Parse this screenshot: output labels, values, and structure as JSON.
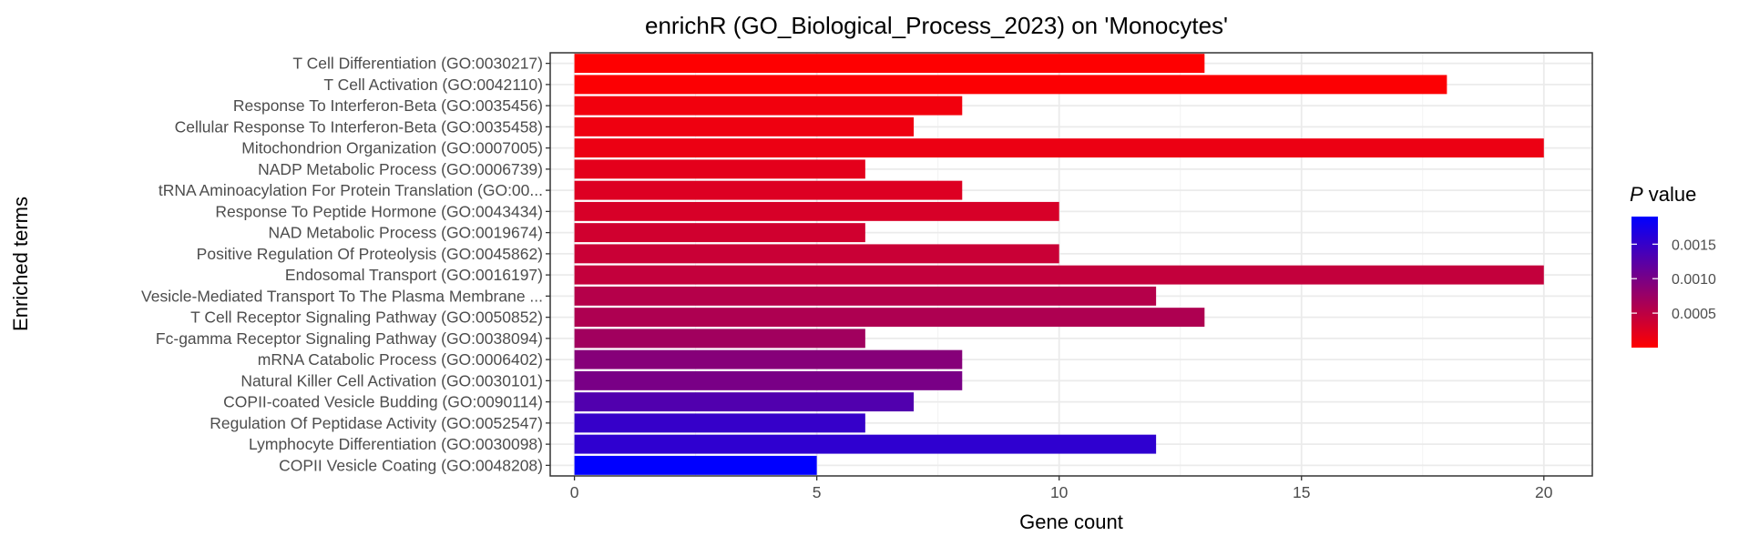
{
  "chart_data": {
    "type": "bar",
    "orientation": "horizontal",
    "title": "enrichR (GO_Biological_Process_2023) on 'Monocytes'",
    "xlabel": "Gene count",
    "ylabel": "Enriched terms",
    "xlim": [
      -0.5,
      21
    ],
    "xticks": [
      0,
      5,
      10,
      15,
      20
    ],
    "grid": true,
    "legend": {
      "title_italic": "P",
      "title_rest": " value",
      "position": "right",
      "range": [
        0.0,
        0.0019
      ],
      "ticks": [
        {
          "label": "0.0015",
          "value": 0.0015
        },
        {
          "label": "0.0010",
          "value": 0.001
        },
        {
          "label": "0.0005",
          "value": 0.0005
        }
      ],
      "low_color": "#ff0000",
      "high_color": "#0000ff"
    },
    "categories": [
      "T Cell Differentiation (GO:0030217)",
      "T Cell Activation (GO:0042110)",
      "Response To Interferon-Beta (GO:0035456)",
      "Cellular Response To Interferon-Beta (GO:0035458)",
      "Mitochondrion Organization (GO:0007005)",
      "NADP Metabolic Process (GO:0006739)",
      "tRNA Aminoacylation For Protein Translation (GO:00...",
      "Response To Peptide Hormone (GO:0043434)",
      "NAD Metabolic Process (GO:0019674)",
      "Positive Regulation Of Proteolysis (GO:0045862)",
      "Endosomal Transport (GO:0016197)",
      "Vesicle-Mediated Transport To The Plasma Membrane ...",
      "T Cell Receptor Signaling Pathway (GO:0050852)",
      "Fc-gamma Receptor Signaling Pathway (GO:0038094)",
      "mRNA Catabolic Process (GO:0006402)",
      "Natural Killer Cell Activation (GO:0030101)",
      "COPII-coated Vesicle Budding (GO:0090114)",
      "Regulation Of Peptidase Activity (GO:0052547)",
      "Lymphocyte Differentiation (GO:0030098)",
      "COPII Vesicle Coating (GO:0048208)"
    ],
    "values": [
      13,
      18,
      8,
      7,
      20,
      6,
      8,
      10,
      6,
      10,
      20,
      12,
      13,
      6,
      8,
      8,
      7,
      6,
      12,
      5
    ],
    "p_values": [
      1e-05,
      2e-05,
      0.0001,
      0.00012,
      0.00014,
      0.0002,
      0.00025,
      0.0003,
      0.00035,
      0.0004,
      0.00045,
      0.00055,
      0.0006,
      0.0007,
      0.0009,
      0.001,
      0.0013,
      0.0015,
      0.00155,
      0.0019
    ]
  }
}
